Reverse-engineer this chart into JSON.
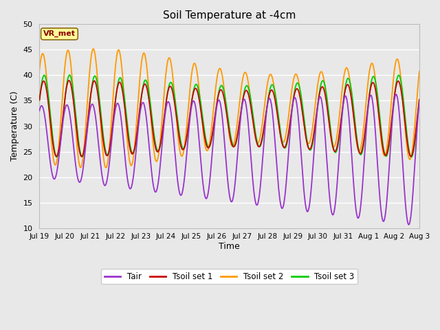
{
  "title": "Soil Temperature at -4cm",
  "xlabel": "Time",
  "ylabel": "Temperature (C)",
  "ylim": [
    10,
    50
  ],
  "xlim": [
    0,
    360
  ],
  "background_color": "#e8e8e8",
  "plot_bg_color": "#e8e8e8",
  "grid_color": "white",
  "annotation_text": "VR_met",
  "annotation_bg": "#ffff99",
  "annotation_fg": "#8b0000",
  "colors": {
    "Tair": "#9933cc",
    "Tsoil1": "#cc0000",
    "Tsoil2": "#ff9900",
    "Tsoil3": "#00cc00"
  },
  "xtick_labels": [
    "Jul 19",
    "Jul 20",
    "Jul 21",
    "Jul 22",
    "Jul 23",
    "Jul 24",
    "Jul 25",
    "Jul 26",
    "Jul 27",
    "Jul 28",
    "Jul 29",
    "Jul 30",
    "Jul 31",
    "Aug 1",
    "Aug 2",
    "Aug 3"
  ],
  "xtick_positions": [
    0,
    24,
    48,
    72,
    96,
    120,
    144,
    168,
    192,
    216,
    240,
    264,
    288,
    312,
    336,
    360
  ],
  "figsize": [
    6.4,
    4.8
  ],
  "dpi": 100
}
